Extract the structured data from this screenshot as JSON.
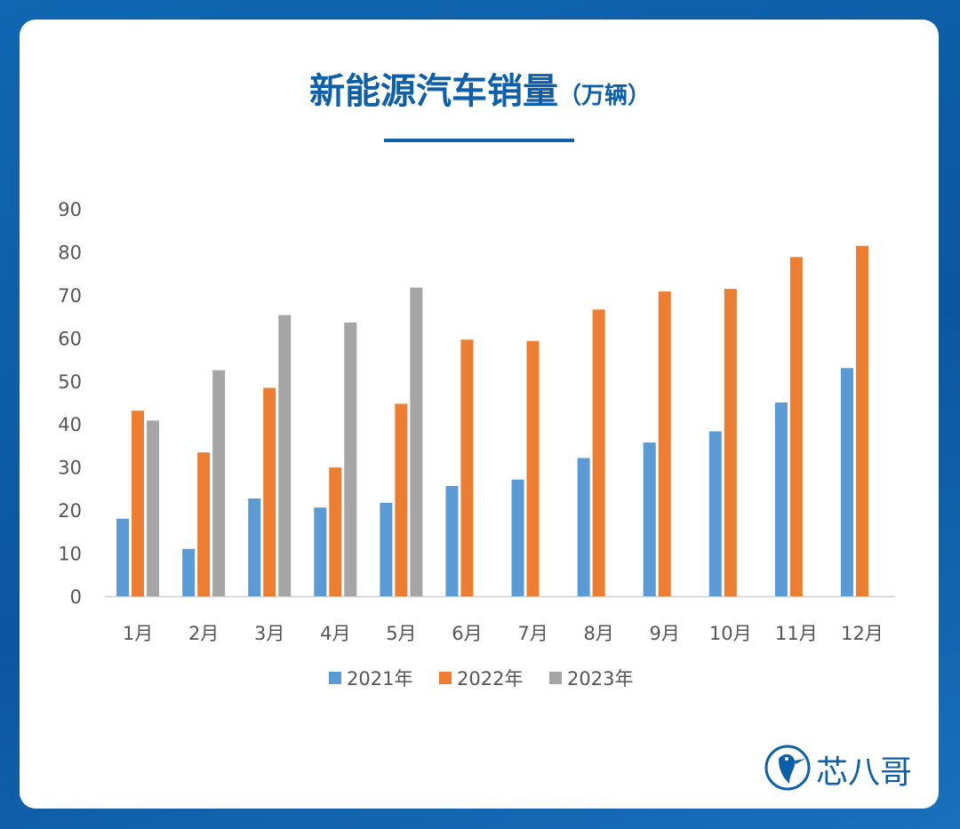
{
  "title": {
    "main": "新能源汽车销量",
    "unit": "（万辆）"
  },
  "brand": {
    "name": "芯八哥"
  },
  "colors": {
    "s2021": "#5b9bd5",
    "s2022": "#ed7d31",
    "s2023": "#a5a5a5",
    "accent": "#0d60a8"
  },
  "chart_data": {
    "type": "bar",
    "title": "新能源汽车销量（万辆）",
    "categories": [
      "1月",
      "2月",
      "3月",
      "4月",
      "5月",
      "6月",
      "7月",
      "8月",
      "9月",
      "10月",
      "11月",
      "12月"
    ],
    "series": [
      {
        "name": "2021年",
        "values": [
          18,
          11,
          22.7,
          20.6,
          21.7,
          25.6,
          27.1,
          32.1,
          35.7,
          38.3,
          45,
          53
        ]
      },
      {
        "name": "2022年",
        "values": [
          43.1,
          33.4,
          48.4,
          29.9,
          44.7,
          59.6,
          59.3,
          66.6,
          70.8,
          71.4,
          78.8,
          81.4
        ]
      },
      {
        "name": "2023年",
        "values": [
          40.8,
          52.5,
          65.3,
          63.6,
          71.7,
          null,
          null,
          null,
          null,
          null,
          null,
          null
        ]
      }
    ],
    "ylim": [
      0,
      90
    ],
    "yticks": [
      0,
      10,
      20,
      30,
      40,
      50,
      60,
      70,
      80,
      90
    ],
    "grid": false,
    "legend": "bottom-center"
  }
}
